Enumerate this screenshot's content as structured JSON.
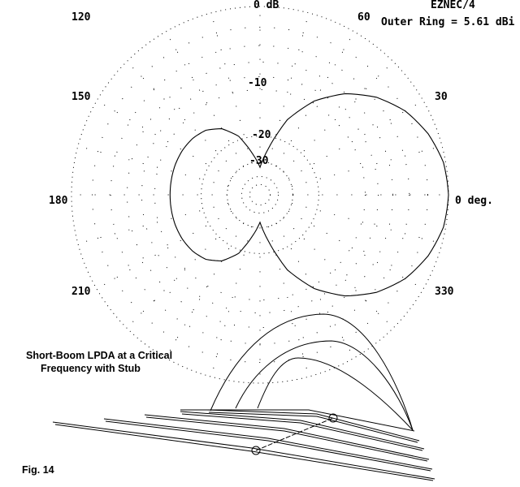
{
  "header": {
    "program": "EZNEC/4",
    "outer_ring": "Outer Ring = 5.61 dBi"
  },
  "caption": {
    "line1": "Short-Boom LPDA at a Critical",
    "line2": "Frequency with Stub"
  },
  "figure_label": "Fig. 14",
  "chart_data": {
    "type": "polar",
    "scale": "ARRL log (0.89 per 2 dB)",
    "outer_ring_label": "0 dB",
    "ring_labels": [
      "-10",
      "-20",
      "-30"
    ],
    "angle_labels": [
      {
        "angle": 0,
        "text": "0 deg."
      },
      {
        "angle": 30,
        "text": "30"
      },
      {
        "angle": 60,
        "text": "60"
      },
      {
        "angle": 120,
        "text": "120"
      },
      {
        "angle": 150,
        "text": "150"
      },
      {
        "angle": 180,
        "text": "180"
      },
      {
        "angle": 210,
        "text": "210"
      },
      {
        "angle": 330,
        "text": "330"
      }
    ],
    "grid_rings_db": [
      0,
      -2,
      -4,
      -6,
      -8,
      -10,
      -20,
      -30,
      -40,
      -50
    ],
    "spoke_step_deg": 15,
    "series": [
      {
        "angles_deg": [
          0,
          10,
          20,
          30,
          40,
          50,
          60,
          70,
          80,
          90,
          100,
          110,
          120,
          130,
          140,
          150,
          160,
          170,
          180,
          190,
          200,
          210,
          220,
          230,
          240,
          250,
          260,
          270,
          280,
          290,
          300,
          310,
          320,
          330,
          340,
          350,
          360
        ],
        "gain_db": [
          0,
          -0.2,
          -0.9,
          -2.0,
          -3.7,
          -6.1,
          -9.5,
          -14.7,
          -24,
          -33,
          -26,
          -19,
          -15.5,
          -13.8,
          -13.1,
          -12.8,
          -12.7,
          -12.7,
          -12.7,
          -12.7,
          -12.7,
          -12.8,
          -13.1,
          -13.8,
          -15.5,
          -19,
          -26,
          -33,
          -24,
          -14.7,
          -9.5,
          -6.1,
          -3.7,
          -2.0,
          -0.9,
          -0.2,
          0
        ]
      }
    ]
  },
  "colors": {
    "line": "#000000",
    "background": "#ffffff"
  }
}
